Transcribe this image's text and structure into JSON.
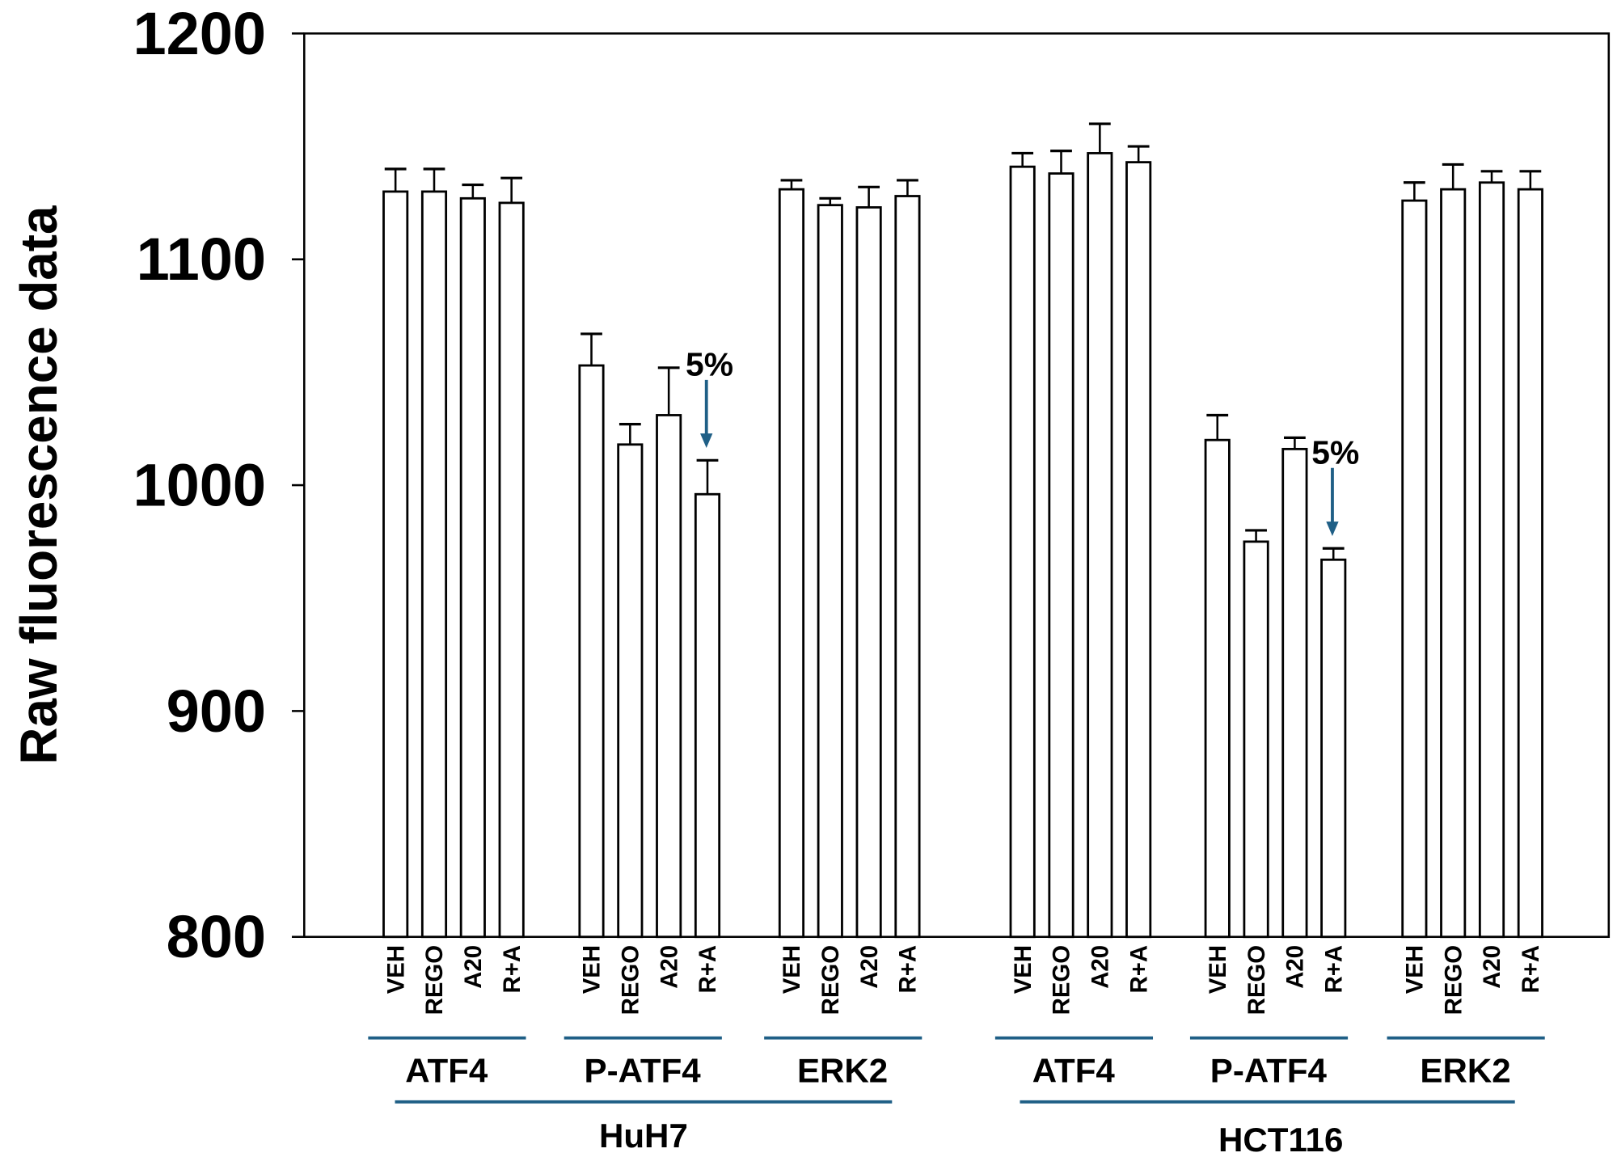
{
  "chart_data": {
    "type": "bar",
    "ylabel": "Raw fluorescence data",
    "xlabel": "",
    "ylim": [
      800,
      1200
    ],
    "yticks": [
      "800",
      "900",
      "1000",
      "1100",
      "1200"
    ],
    "grid": false,
    "bar_fill": "#ffffff",
    "annotation_color": "#1f5f86",
    "treatments": [
      "VEH",
      "REGO",
      "A20",
      "R+A"
    ],
    "cell_lines": [
      {
        "name": "HuH7",
        "groups": [
          {
            "name": "ATF4",
            "values": [
              1130,
              1130,
              1127,
              1125
            ],
            "errors": [
              10,
              10,
              6,
              11
            ]
          },
          {
            "name": "P-ATF4",
            "values": [
              1053,
              1018,
              1031,
              996
            ],
            "errors": [
              14,
              9,
              21,
              15
            ]
          },
          {
            "name": "ERK2",
            "values": [
              1131,
              1124,
              1123,
              1128
            ],
            "errors": [
              4,
              3,
              9,
              7
            ]
          }
        ]
      },
      {
        "name": "HCT116",
        "groups": [
          {
            "name": "ATF4",
            "values": [
              1141,
              1138,
              1147,
              1143
            ],
            "errors": [
              6,
              10,
              13,
              7
            ]
          },
          {
            "name": "P-ATF4",
            "values": [
              1020,
              975,
              1016,
              967
            ],
            "errors": [
              11,
              5,
              5,
              5
            ]
          },
          {
            "name": "ERK2",
            "values": [
              1126,
              1131,
              1134,
              1131
            ],
            "errors": [
              8,
              11,
              5,
              8
            ]
          }
        ]
      }
    ],
    "annotations": [
      {
        "text": "5%",
        "cell_line": "HuH7",
        "group": "P-ATF4",
        "target": "R+A"
      },
      {
        "text": "5%",
        "cell_line": "HCT116",
        "group": "P-ATF4",
        "target": "R+A"
      }
    ]
  }
}
